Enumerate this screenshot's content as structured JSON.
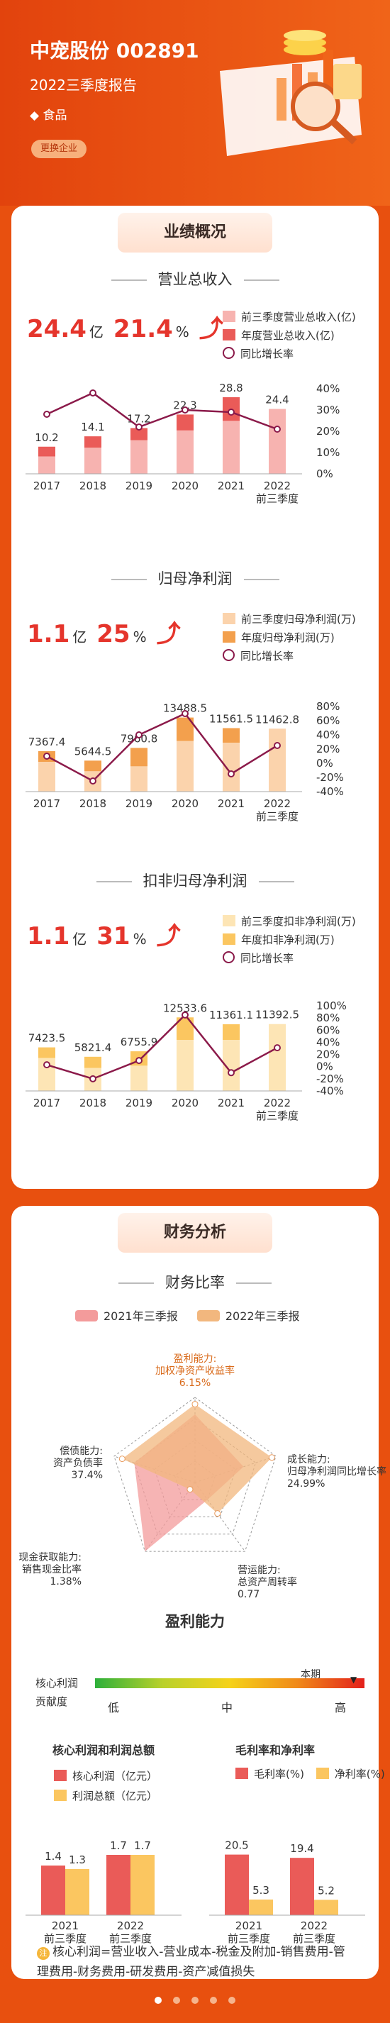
{
  "header": {
    "title": "中宠股份 002891",
    "subtitle": "2022三季度报告",
    "industry": "◆ 食品",
    "switch_button": "更换企业"
  },
  "sections": {
    "performance": "业绩概况",
    "finance": "财务分析"
  },
  "revenue": {
    "title": "营业总收入",
    "kpi_value": "24.4",
    "kpi_unit": "亿",
    "kpi_growth": "21.4",
    "kpi_growth_unit": "%",
    "legend": [
      "前三季度营业总收入(亿)",
      "年度营业总收入(亿)",
      "同比增长率"
    ],
    "categories": [
      "2017",
      "2018",
      "2019",
      "2020",
      "2021",
      "2022前三季度"
    ],
    "labels": [
      "10.2",
      "14.1",
      "17.2",
      "22.3",
      "28.8",
      "24.4"
    ],
    "right_ticks": [
      "40%",
      "30%",
      "20%",
      "10%",
      "0%"
    ]
  },
  "profit": {
    "title": "归母净利润",
    "kpi_value": "1.1",
    "kpi_unit": "亿",
    "kpi_growth": "25",
    "kpi_growth_unit": "%",
    "legend": [
      "前三季度归母净利润(万)",
      "年度归母净利润(万)",
      "同比增长率"
    ],
    "labels": [
      "7367.4",
      "5644.5",
      "7960.8",
      "13488.5",
      "11561.5",
      "11462.8"
    ],
    "right_ticks": [
      "80%",
      "60%",
      "40%",
      "20%",
      "0%",
      "-20%",
      "-40%"
    ]
  },
  "deducted": {
    "title": "扣非归母净利润",
    "kpi_value": "1.1",
    "kpi_unit": "亿",
    "kpi_growth": "31",
    "kpi_growth_unit": "%",
    "legend": [
      "前三季度扣非净利润(万)",
      "年度扣非净利润(万)",
      "同比增长率"
    ],
    "labels": [
      "7423.5",
      "5821.4",
      "6755.9",
      "12533.6",
      "11361.1",
      "11392.5"
    ],
    "right_ticks": [
      "100%",
      "80%",
      "60%",
      "40%",
      "20%",
      "0%",
      "-20%",
      "-40%"
    ]
  },
  "ratio": {
    "title": "财务比率",
    "legend": [
      "2021年三季报",
      "2022年三季报"
    ],
    "axes": [
      {
        "l1": "盈利能力:",
        "l2": "加权净资产收益率",
        "v": "6.15%"
      },
      {
        "l1": "成长能力:",
        "l2": "归母净利润同比增长率",
        "v": "24.99%"
      },
      {
        "l1": "营运能力:",
        "l2": "总资产周转率",
        "v": "0.77"
      },
      {
        "l1": "现金获取能力:",
        "l2": "销售现金比率",
        "v": "1.38%"
      },
      {
        "l1": "偿债能力:",
        "l2": "资产负债率",
        "v": "37.4%"
      }
    ]
  },
  "profitability": {
    "title": "盈利能力",
    "bar_label_1": "核心利润",
    "bar_label_2": "贡献度",
    "current": "本期",
    "low": "低",
    "mid": "中",
    "high": "高"
  },
  "core": {
    "title": "核心利润和利润总额",
    "legend": [
      "核心利润（亿元）",
      "利润总额（亿元）"
    ],
    "groups": [
      "2021前三季度",
      "2022前三季度"
    ],
    "a": [
      "1.4",
      "1.7"
    ],
    "b": [
      "1.3",
      "1.7"
    ]
  },
  "margin": {
    "title": "毛利率和净利率",
    "legend": [
      "毛利率(%)",
      "净利率(%)"
    ],
    "groups": [
      "2021前三季度",
      "2022前三季度"
    ],
    "a": [
      "20.5",
      "19.4"
    ],
    "b": [
      "5.3",
      "5.2"
    ]
  },
  "note": "核心利润=营业收入-营业成本-税金及附加-销售费用-管理费用-财务费用-研发费用-资产减值损失",
  "note_icon": "注",
  "chart_data": [
    {
      "type": "bar",
      "title": "营业总收入",
      "categories": [
        "2017",
        "2018",
        "2019",
        "2020",
        "2021",
        "2022 前三季度"
      ],
      "series": [
        {
          "name": "前三季度营业总收入(亿)",
          "values": [
            6.5,
            9.8,
            12.6,
            16.3,
            19.9,
            24.4
          ]
        },
        {
          "name": "年度营业总收入(亿)",
          "values": [
            10.2,
            14.1,
            17.2,
            22.3,
            28.8,
            null
          ]
        },
        {
          "name": "同比增长率",
          "values": [
            28,
            38,
            22,
            30,
            29,
            21
          ]
        }
      ],
      "y2lim": [
        0,
        40
      ]
    },
    {
      "type": "bar",
      "title": "归母净利润",
      "categories": [
        "2017",
        "2018",
        "2019",
        "2020",
        "2021",
        "2022 前三季度"
      ],
      "series": [
        {
          "name": "前三季度归母净利润(万)",
          "values": [
            5400,
            3700,
            4600,
            9200,
            8900,
            11462.8
          ]
        },
        {
          "name": "年度归母净利润(万)",
          "values": [
            7367.4,
            5644.5,
            7960.8,
            13488.5,
            11561.5,
            null
          ]
        },
        {
          "name": "同比增长率",
          "values": [
            10,
            -25,
            40,
            70,
            -15,
            25
          ]
        }
      ],
      "y2lim": [
        -40,
        80
      ]
    },
    {
      "type": "bar",
      "title": "扣非归母净利润",
      "categories": [
        "2017",
        "2018",
        "2019",
        "2020",
        "2021",
        "2022 前三季度"
      ],
      "series": [
        {
          "name": "前三季度扣非净利润(万)",
          "values": [
            5600,
            3900,
            4300,
            8700,
            8700,
            11392.5
          ]
        },
        {
          "name": "年度扣非净利润(万)",
          "values": [
            7423.5,
            5821.4,
            6755.9,
            12533.6,
            11361.1,
            null
          ]
        },
        {
          "name": "同比增长率",
          "values": [
            3,
            -20,
            10,
            85,
            -10,
            31
          ]
        }
      ],
      "y2lim": [
        -40,
        100
      ]
    },
    {
      "type": "bar",
      "title": "核心利润和利润总额",
      "categories": [
        "2021 前三季度",
        "2022 前三季度"
      ],
      "series": [
        {
          "name": "核心利润（亿元）",
          "values": [
            1.4,
            1.7
          ]
        },
        {
          "name": "利润总额（亿元）",
          "values": [
            1.3,
            1.7
          ]
        }
      ]
    },
    {
      "type": "bar",
      "title": "毛利率和净利率",
      "categories": [
        "2021 前三季度",
        "2022 前三季度"
      ],
      "series": [
        {
          "name": "毛利率(%)",
          "values": [
            20.5,
            19.4
          ]
        },
        {
          "name": "净利率(%)",
          "values": [
            5.3,
            5.2
          ]
        }
      ]
    }
  ],
  "colors": {
    "orange": "#e8500f",
    "red": "#e5352c",
    "pink1": "#f7b3b0",
    "pink2": "#ea5b58",
    "peach1": "#fbd3ac",
    "peach2": "#f3a04d",
    "cream1": "#fde5b5",
    "cream2": "#fbc660",
    "line": "#8b1a4a"
  }
}
